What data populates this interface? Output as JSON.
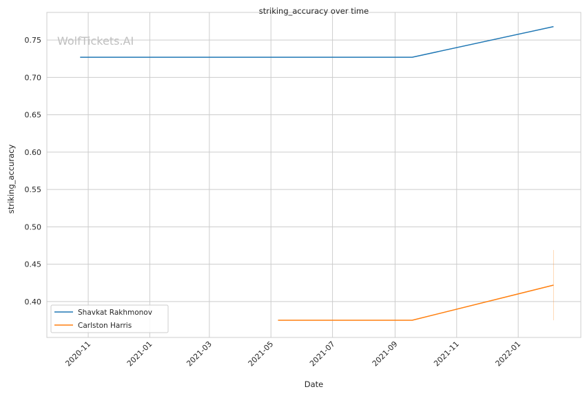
{
  "watermark": "WolfTickets.AI",
  "chart_data": {
    "type": "line",
    "title": "striking_accuracy over time",
    "xlabel": "Date",
    "ylabel": "striking_accuracy",
    "xlim": [
      "2020-09-21",
      "2022-03-04"
    ],
    "ylim": [
      0.352,
      0.787
    ],
    "x_ticks": [
      "2020-11",
      "2021-01",
      "2021-03",
      "2021-05",
      "2021-07",
      "2021-09",
      "2021-11",
      "2022-01"
    ],
    "y_ticks": [
      "0.40",
      "0.45",
      "0.50",
      "0.55",
      "0.60",
      "0.65",
      "0.70",
      "0.75"
    ],
    "grid": true,
    "legend_position": "lower-left",
    "series": [
      {
        "name": "Shavkat Rakhmonov",
        "color": "#1f77b4",
        "points": [
          {
            "x": "2020-10-24",
            "y": 0.727
          },
          {
            "x": "2021-09-18",
            "y": 0.727
          },
          {
            "x": "2022-02-05",
            "y": 0.768
          }
        ]
      },
      {
        "name": "Carlston Harris",
        "color": "#ff7f0e",
        "points": [
          {
            "x": "2021-05-08",
            "y": 0.375
          },
          {
            "x": "2021-09-18",
            "y": 0.375
          },
          {
            "x": "2022-02-05",
            "y": 0.422
          }
        ],
        "error_band": {
          "x": "2022-02-05",
          "low": 0.375,
          "high": 0.469
        }
      }
    ]
  }
}
